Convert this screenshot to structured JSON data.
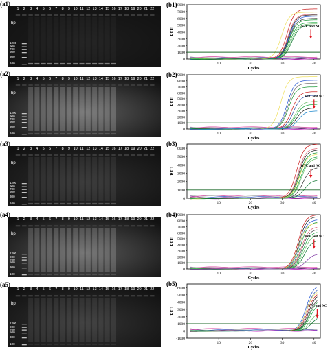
{
  "lanes": [
    "1",
    "2",
    "3",
    "4",
    "5",
    "6",
    "7",
    "8",
    "9",
    "10",
    "11",
    "12",
    "13",
    "14",
    "15",
    "16",
    "17",
    "18",
    "19",
    "20",
    "21",
    "22"
  ],
  "ladder": {
    "unit": "bp",
    "markers": [
      "1200",
      "900",
      "700",
      "500",
      "300",
      "100"
    ],
    "marker_values": [
      1200,
      900,
      700,
      500,
      300,
      100
    ]
  },
  "gels": [
    {
      "label": "(a1)",
      "band_lanes": [
        3,
        4,
        5,
        6,
        7,
        8,
        9,
        10,
        11,
        12,
        13,
        14,
        15,
        16
      ],
      "band_intensity": 0.65,
      "haze": 0.05
    },
    {
      "label": "(a2)",
      "band_lanes": [
        3,
        4,
        5,
        6,
        7,
        8,
        9,
        10,
        11,
        12,
        13,
        14,
        15,
        16
      ],
      "band_intensity": 0.25,
      "haze": 0.32
    },
    {
      "label": "(a3)",
      "band_lanes": [
        3,
        4,
        5,
        6,
        7,
        8,
        9,
        10,
        11,
        12,
        13,
        14,
        15,
        16
      ],
      "band_intensity": 0.35,
      "haze": 0.12
    },
    {
      "label": "(a4)",
      "band_lanes": [
        3,
        4,
        5,
        6,
        7,
        8,
        9,
        10,
        11,
        12,
        13,
        14,
        15,
        16
      ],
      "band_intensity": 0.2,
      "haze": 0.3
    },
    {
      "label": "(a5)",
      "band_lanes": [
        3,
        4,
        5,
        6,
        7,
        8,
        9,
        10,
        11,
        12,
        13,
        14,
        15,
        16
      ],
      "band_intensity": 0.1,
      "haze": 0.14
    }
  ],
  "chart_data": [
    {
      "label": "(b1)",
      "type": "line",
      "xlabel": "Cycles",
      "ylabel": "RFU",
      "xlim": [
        0,
        42
      ],
      "ylim": [
        0,
        8000
      ],
      "yticks": [
        0,
        1000,
        2000,
        3000,
        4000,
        5000,
        6000,
        7000,
        8000
      ],
      "xticks": [
        10,
        20,
        30,
        40
      ],
      "threshold": 1000,
      "annotation": "NTC and NC",
      "annotation_x": 39,
      "curves": [
        {
          "color": "#cc2222",
          "plateau": 7400,
          "mid": 31.5
        },
        {
          "color": "#dd6677",
          "plateau": 6600,
          "mid": 31.8
        },
        {
          "color": "#222222",
          "plateau": 6500,
          "mid": 32
        },
        {
          "color": "#333333",
          "plateau": 6000,
          "mid": 32.2
        },
        {
          "color": "#1f9a3a",
          "plateau": 5800,
          "mid": 32.3
        },
        {
          "color": "#2b5bd6",
          "plateau": 6300,
          "mid": 32.1
        },
        {
          "color": "#f0e060",
          "plateau": 6900,
          "mid": 29.8
        },
        {
          "color": "#22aa44",
          "plateau": 5400,
          "mid": 32.5
        },
        {
          "color": "#6fbf6f",
          "plateau": 5200,
          "mid": 32.8
        },
        {
          "color": "#117733",
          "plateau": 5000,
          "mid": 33
        }
      ]
    },
    {
      "label": "(b2)",
      "type": "line",
      "xlabel": "Cycles",
      "ylabel": "RFU",
      "xlim": [
        0,
        42
      ],
      "ylim": [
        0,
        9000
      ],
      "yticks": [
        0,
        1000,
        2000,
        3000,
        4000,
        5000,
        6000,
        7000,
        8000,
        9000
      ],
      "xticks": [
        10,
        20,
        30,
        40
      ],
      "threshold": 1000,
      "annotation": "NTC and NC",
      "annotation_x": 40,
      "curves": [
        {
          "color": "#f0e060",
          "plateau": 8700,
          "mid": 29.5
        },
        {
          "color": "#2b5bd6",
          "plateau": 8100,
          "mid": 31.5
        },
        {
          "color": "#777777",
          "plateau": 7600,
          "mid": 31.8
        },
        {
          "color": "#1f9a3a",
          "plateau": 7000,
          "mid": 32
        },
        {
          "color": "#cc2222",
          "plateau": 6200,
          "mid": 33
        },
        {
          "color": "#3355aa",
          "plateau": 5600,
          "mid": 33.5
        },
        {
          "color": "#6fbf6f",
          "plateau": 4600,
          "mid": 34
        },
        {
          "color": "#222222",
          "plateau": 3500,
          "mid": 34.5
        },
        {
          "color": "#22aa44",
          "plateau": 4100,
          "mid": 34.2
        },
        {
          "color": "#1e88cc",
          "plateau": 3000,
          "mid": 35
        }
      ]
    },
    {
      "label": "(b3)",
      "type": "line",
      "xlabel": "Cycles",
      "ylabel": "RFU",
      "xlim": [
        0,
        42
      ],
      "ylim": [
        0,
        6500
      ],
      "yticks": [
        0,
        1000,
        2000,
        3000,
        4000,
        5000,
        6000
      ],
      "xticks": [
        10,
        20,
        30,
        40
      ],
      "threshold": 1000,
      "annotation": "NTC and NC",
      "annotation_x": 39,
      "curves": [
        {
          "color": "#cc2222",
          "plateau": 6500,
          "mid": 34.5
        },
        {
          "color": "#dd6677",
          "plateau": 6000,
          "mid": 35
        },
        {
          "color": "#222222",
          "plateau": 5800,
          "mid": 35.2
        },
        {
          "color": "#1f9a3a",
          "plateau": 5500,
          "mid": 35.4
        },
        {
          "color": "#f0e060",
          "plateau": 5300,
          "mid": 35.5
        },
        {
          "color": "#22aa44",
          "plateau": 5000,
          "mid": 35.8
        },
        {
          "color": "#6fbf6f",
          "plateau": 4800,
          "mid": 36
        },
        {
          "color": "#333333",
          "plateau": 3700,
          "mid": 36.5
        },
        {
          "color": "#117733",
          "plateau": 2200,
          "mid": 37
        }
      ]
    },
    {
      "label": "(b4)",
      "type": "line",
      "xlabel": "Cycles",
      "ylabel": "RFU",
      "xlim": [
        0,
        42
      ],
      "ylim": [
        0,
        9000
      ],
      "yticks": [
        0,
        1000,
        2000,
        3000,
        4000,
        5000,
        6000,
        7000,
        8000,
        9000
      ],
      "xticks": [
        10,
        20,
        30,
        40
      ],
      "threshold": 1000,
      "annotation": "NTC and NC",
      "annotation_x": 40,
      "curves": [
        {
          "color": "#cc2222",
          "plateau": 9000,
          "mid": 35
        },
        {
          "color": "#222222",
          "plateau": 8700,
          "mid": 35.3
        },
        {
          "color": "#2b5bd6",
          "plateau": 8200,
          "mid": 35.5
        },
        {
          "color": "#1f9a3a",
          "plateau": 7800,
          "mid": 35.8
        },
        {
          "color": "#f0e060",
          "plateau": 7600,
          "mid": 35.2
        },
        {
          "color": "#dd6677",
          "plateau": 7000,
          "mid": 36
        },
        {
          "color": "#444444",
          "plateau": 6600,
          "mid": 36.2
        },
        {
          "color": "#22aa44",
          "plateau": 6200,
          "mid": 36.5
        },
        {
          "color": "#6fbf6f",
          "plateau": 5700,
          "mid": 36.8
        },
        {
          "color": "#117733",
          "plateau": 4800,
          "mid": 37
        },
        {
          "color": "#8844aa",
          "plateau": 2500,
          "mid": 37.5
        }
      ]
    },
    {
      "label": "(b5)",
      "type": "line",
      "xlabel": "Cycles",
      "ylabel": "RFU",
      "xlim": [
        0,
        42
      ],
      "ylim": [
        -1000,
        6500
      ],
      "yticks": [
        -1000,
        0,
        1000,
        2000,
        3000,
        4000,
        5000,
        6000
      ],
      "xticks": [
        10,
        20,
        30,
        40
      ],
      "threshold": 1000,
      "annotation": "NTC and NC",
      "annotation_x": 41,
      "curves": [
        {
          "color": "#2b5bd6",
          "plateau": 6400,
          "mid": 37.5
        },
        {
          "color": "#3355aa",
          "plateau": 6000,
          "mid": 37.8
        },
        {
          "color": "#f0e060",
          "plateau": 5600,
          "mid": 37.6
        },
        {
          "color": "#cc2222",
          "plateau": 5400,
          "mid": 38
        },
        {
          "color": "#222222",
          "plateau": 5200,
          "mid": 38.3
        },
        {
          "color": "#444444",
          "plateau": 4700,
          "mid": 38.5
        },
        {
          "color": "#1f9a3a",
          "plateau": 4400,
          "mid": 38.6
        },
        {
          "color": "#22aa44",
          "plateau": 3900,
          "mid": 38.8
        },
        {
          "color": "#6fbf6f",
          "plateau": 2800,
          "mid": 39
        },
        {
          "color": "#117733",
          "plateau": 2100,
          "mid": 39.3
        }
      ]
    }
  ]
}
